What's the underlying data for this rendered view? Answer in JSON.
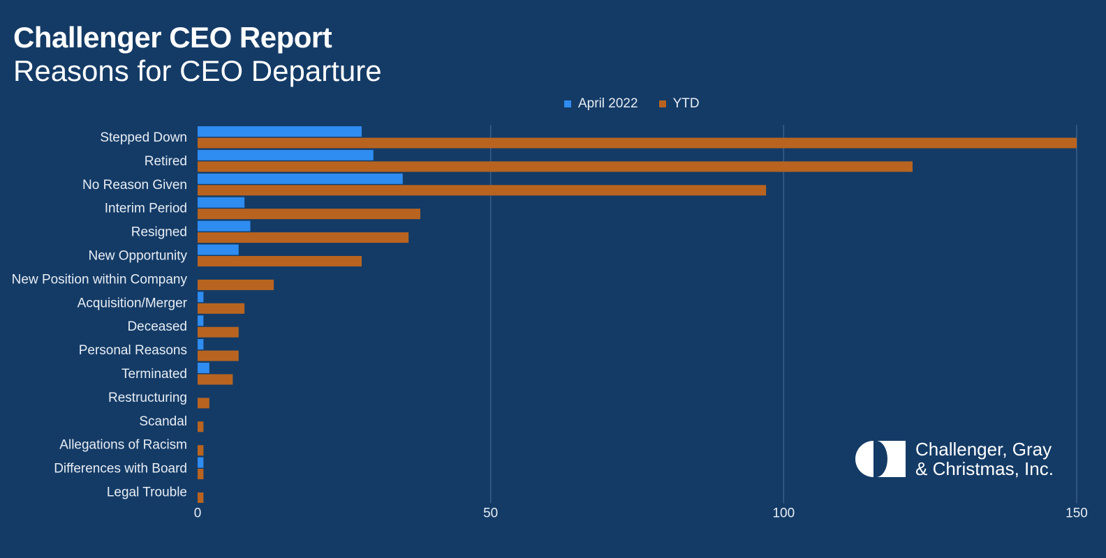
{
  "header": {
    "title": "Challenger CEO Report",
    "subtitle": "Reasons for CEO Departure"
  },
  "logo": {
    "line1": "Challenger, Gray",
    "line2": "& Christmas, Inc."
  },
  "colors": {
    "background": "#143b66",
    "april": "#2f8cf0",
    "ytd": "#b86420",
    "grid": "#3a5f86"
  },
  "chart_data": {
    "type": "bar",
    "orientation": "horizontal",
    "title": "Reasons for CEO Departure",
    "xlabel": "",
    "ylabel": "",
    "xlim": [
      0,
      150
    ],
    "xticks": [
      0,
      50,
      100,
      150
    ],
    "grid": true,
    "legend": "top-center",
    "categories": [
      "Stepped Down",
      "Retired",
      "No Reason Given",
      "Interim Period",
      "Resigned",
      "New Opportunity",
      "New Position within Company",
      "Acquisition/Merger",
      "Deceased",
      "Personal Reasons",
      "Terminated",
      "Restructuring",
      "Scandal",
      "Allegations of Racism",
      "Differences with Board",
      "Legal Trouble"
    ],
    "series": [
      {
        "name": "April 2022",
        "color": "#2f8cf0",
        "values": [
          28,
          30,
          35,
          8,
          9,
          7,
          0,
          1,
          1,
          1,
          2,
          0,
          0,
          0,
          1,
          0
        ]
      },
      {
        "name": "YTD",
        "color": "#b86420",
        "values": [
          150,
          122,
          97,
          38,
          36,
          28,
          13,
          8,
          7,
          7,
          6,
          2,
          1,
          1,
          1,
          1
        ]
      }
    ]
  }
}
